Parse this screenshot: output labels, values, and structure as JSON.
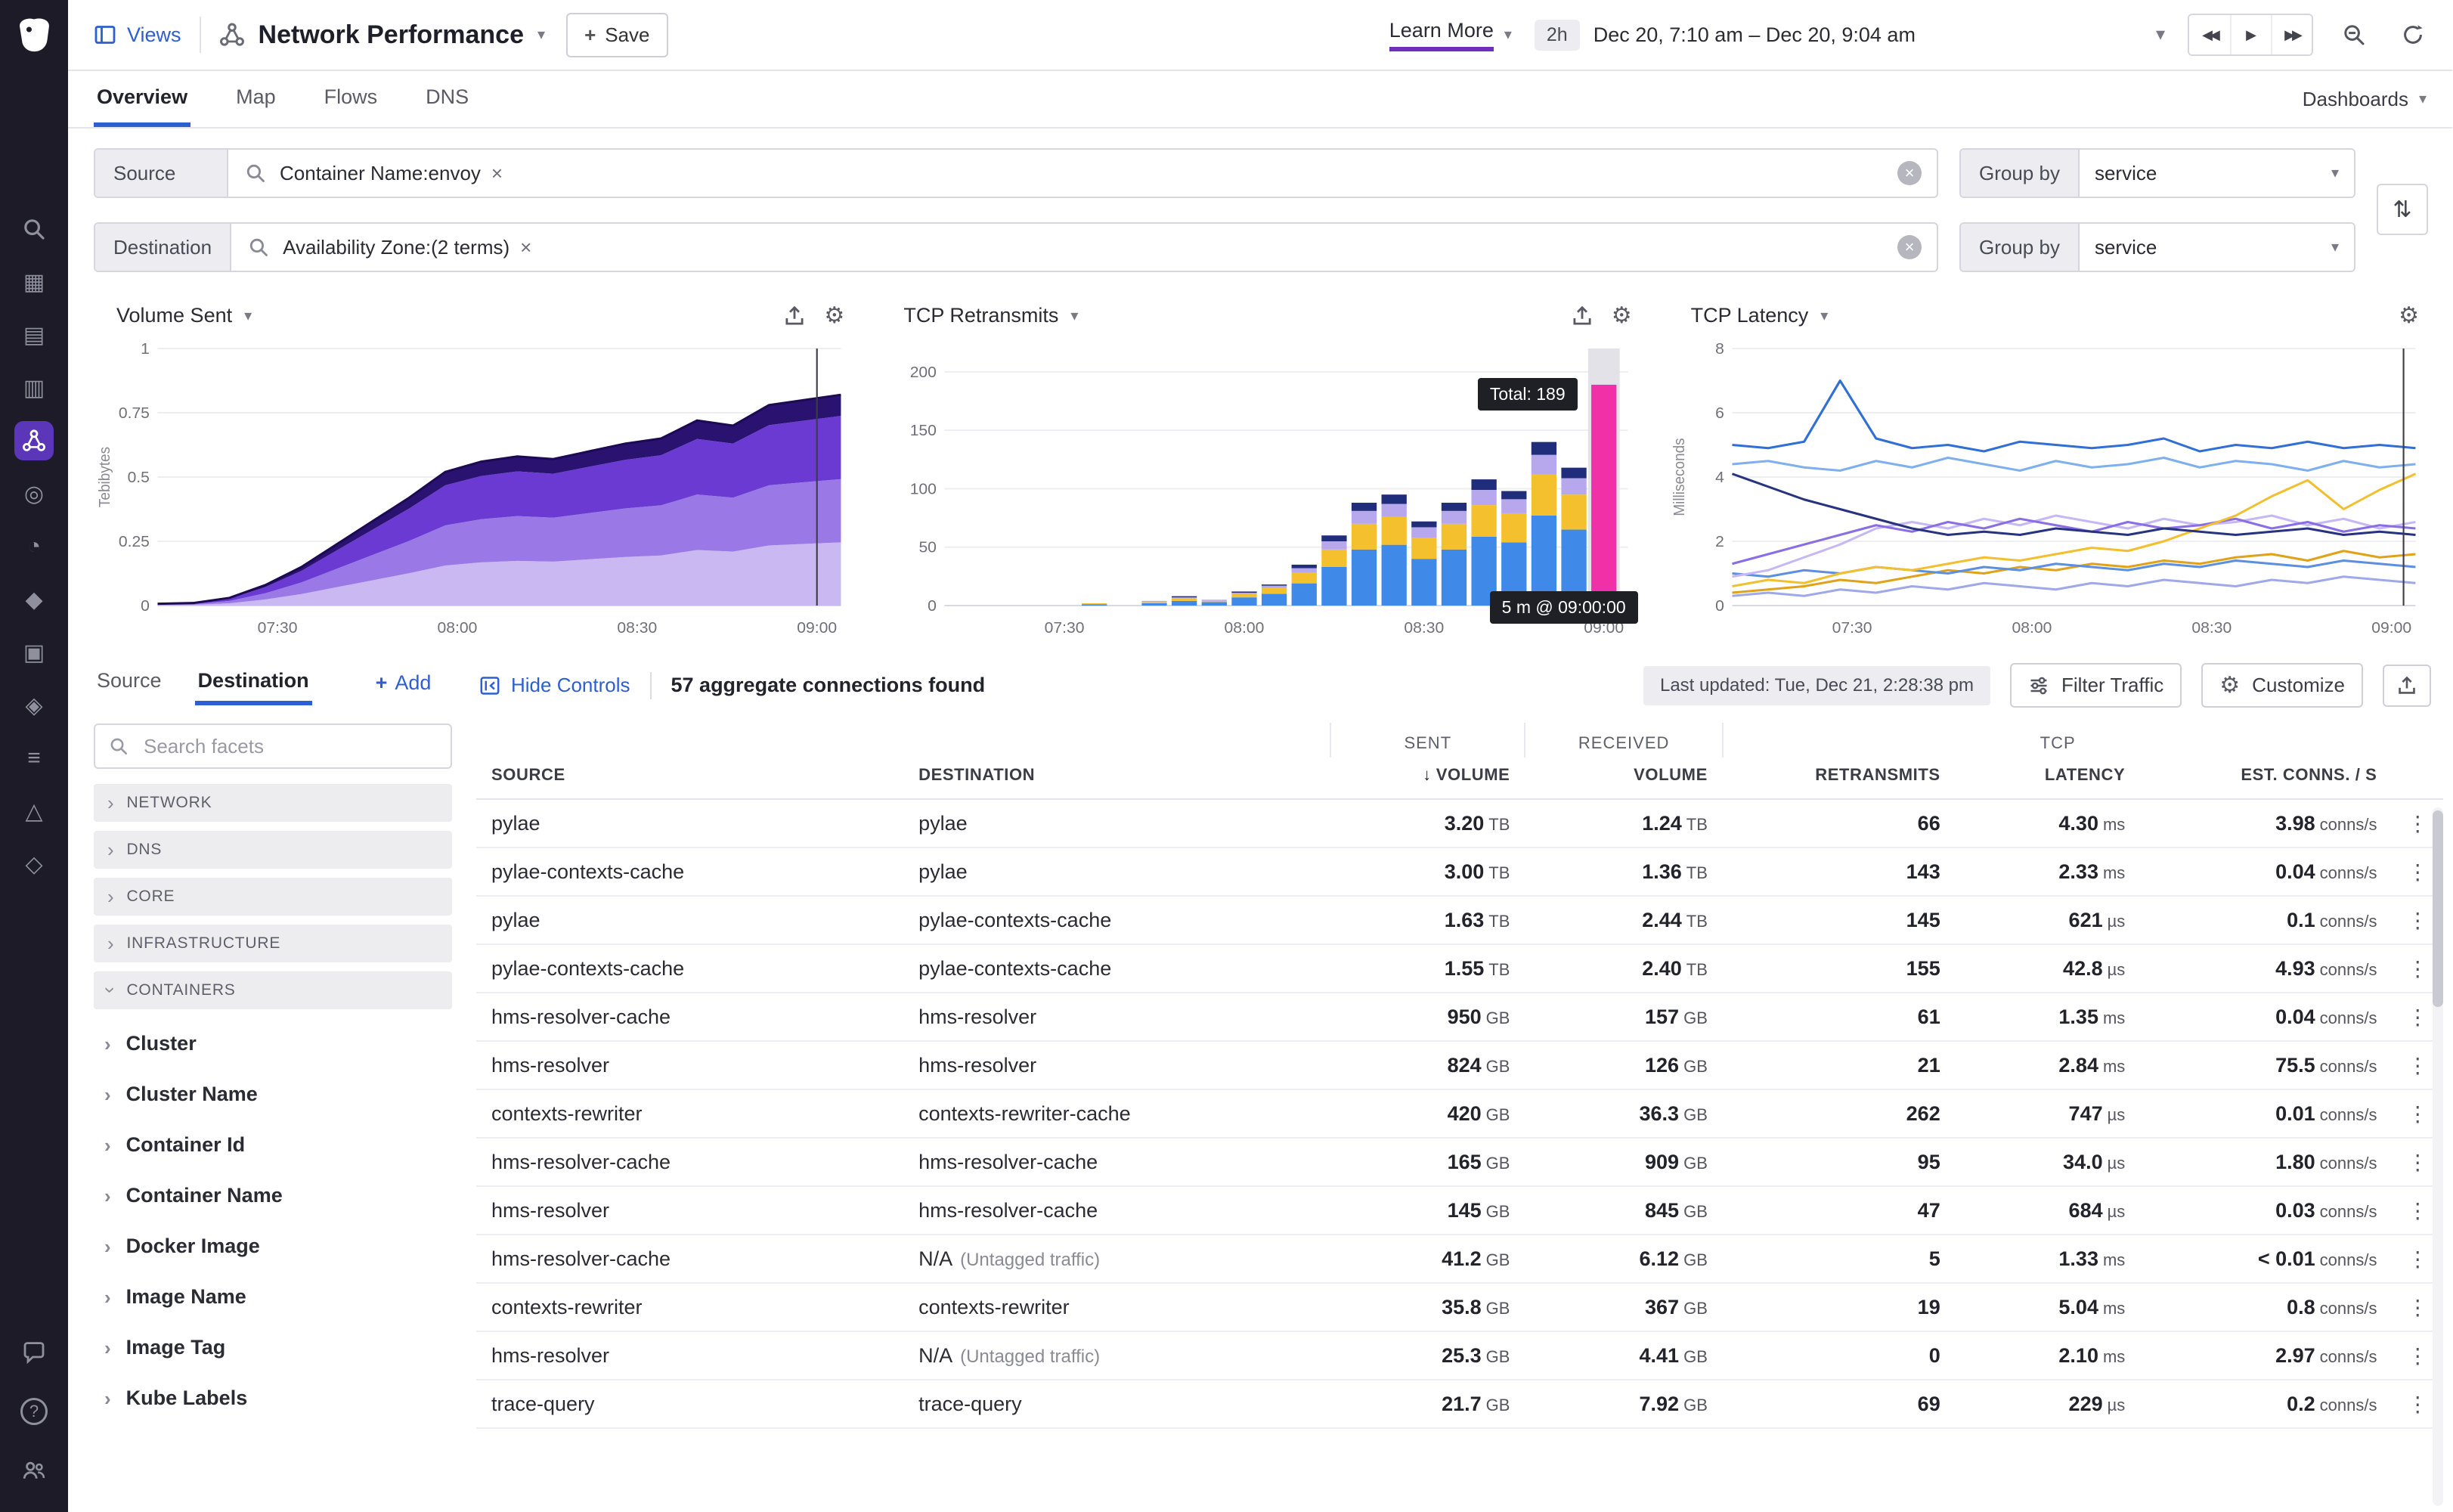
{
  "ui": {
    "close": "×",
    "chevron_down": "▾",
    "chevron_right": "›",
    "kebab": "⋮",
    "sort": "⇅",
    "plus": "+",
    "sort_arrow": "↓",
    "gear": "⚙",
    "rewind": "◀◀",
    "play": "▶",
    "forward": "▶▶",
    "help": "?"
  },
  "colors": {
    "accent_blue": "#2e5fd0",
    "accent_purple": "#632ca6",
    "magenta": "#f12fa6",
    "rail_bg": "#1c1b27"
  },
  "sidebar": {
    "items": [
      {
        "name": "search",
        "glyph": "search"
      },
      {
        "name": "hostmap",
        "glyph": "▦"
      },
      {
        "name": "infrastructure",
        "glyph": "▤"
      },
      {
        "name": "metrics",
        "glyph": "▥"
      },
      {
        "name": "network",
        "glyph": "network",
        "active": true
      },
      {
        "name": "apm",
        "glyph": "◎"
      },
      {
        "name": "synthetics",
        "glyph": "◔"
      },
      {
        "name": "rum",
        "glyph": "◆"
      },
      {
        "name": "logs",
        "glyph": "▣"
      },
      {
        "name": "security",
        "glyph": "◈"
      },
      {
        "name": "processes",
        "glyph": "≡"
      },
      {
        "name": "alerts",
        "glyph": "△"
      },
      {
        "name": "integrations",
        "glyph": "◇"
      }
    ],
    "bottom": [
      {
        "name": "chat",
        "glyph": "bubble"
      },
      {
        "name": "help",
        "glyph": "?"
      },
      {
        "name": "org",
        "glyph": "people"
      }
    ]
  },
  "topbar": {
    "views": "Views",
    "title": "Network Performance",
    "save": "Save",
    "learn_more": "Learn More",
    "preset": "2h",
    "range": "Dec 20, 7:10 am – Dec 20, 9:04 am"
  },
  "tabs": {
    "items": [
      "Overview",
      "Map",
      "Flows",
      "DNS"
    ],
    "dashboards": "Dashboards"
  },
  "filters": {
    "rows": [
      {
        "label": "Source",
        "tag": "Container Name:envoy",
        "group_by_label": "Group by",
        "group_by_value": "service"
      },
      {
        "label": "Destination",
        "tag": "Availability Zone:(2 terms)",
        "group_by_label": "Group by",
        "group_by_value": "service"
      }
    ]
  },
  "facets": {
    "tabs": [
      "Source",
      "Destination"
    ],
    "add": "Add",
    "search_placeholder": "Search facets",
    "groups": [
      {
        "label": "NETWORK",
        "expanded": false
      },
      {
        "label": "DNS",
        "expanded": false
      },
      {
        "label": "CORE",
        "expanded": false
      },
      {
        "label": "INFRASTRUCTURE",
        "expanded": false
      },
      {
        "label": "CONTAINERS",
        "expanded": true,
        "items": [
          "Cluster",
          "Cluster Name",
          "Container Id",
          "Container Name",
          "Docker Image",
          "Image Name",
          "Image Tag",
          "Kube Labels"
        ]
      }
    ]
  },
  "controls": {
    "hide": "Hide Controls",
    "found": "57 aggregate connections found",
    "last_updated": "Last updated: Tue, Dec 21, 2:28:38 pm",
    "filter": "Filter Traffic",
    "customize": "Customize"
  },
  "table": {
    "group": {
      "sent": "SENT",
      "received": "RECEIVED",
      "tcp": "TCP"
    },
    "cols": {
      "source": "SOURCE",
      "destination": "DESTINATION",
      "volume_sent": "VOLUME",
      "volume_received": "VOLUME",
      "retransmits": "RETRANSMITS",
      "latency": "LATENCY",
      "conns": "EST. CONNS. / S"
    },
    "rows": [
      {
        "source": "pylae",
        "destination": "pylae",
        "note": "",
        "sent_v": "3.20",
        "sent_u": "TB",
        "recv_v": "1.24",
        "recv_u": "TB",
        "retr": "66",
        "lat_v": "4.30",
        "lat_u": "ms",
        "conn_v": "3.98",
        "conn_u": "conns/s"
      },
      {
        "source": "pylae-contexts-cache",
        "destination": "pylae",
        "note": "",
        "sent_v": "3.00",
        "sent_u": "TB",
        "recv_v": "1.36",
        "recv_u": "TB",
        "retr": "143",
        "lat_v": "2.33",
        "lat_u": "ms",
        "conn_v": "0.04",
        "conn_u": "conns/s"
      },
      {
        "source": "pylae",
        "destination": "pylae-contexts-cache",
        "note": "",
        "sent_v": "1.63",
        "sent_u": "TB",
        "recv_v": "2.44",
        "recv_u": "TB",
        "retr": "145",
        "lat_v": "621",
        "lat_u": "µs",
        "conn_v": "0.1",
        "conn_u": "conns/s"
      },
      {
        "source": "pylae-contexts-cache",
        "destination": "pylae-contexts-cache",
        "note": "",
        "sent_v": "1.55",
        "sent_u": "TB",
        "recv_v": "2.40",
        "recv_u": "TB",
        "retr": "155",
        "lat_v": "42.8",
        "lat_u": "µs",
        "conn_v": "4.93",
        "conn_u": "conns/s"
      },
      {
        "source": "hms-resolver-cache",
        "destination": "hms-resolver",
        "note": "",
        "sent_v": "950",
        "sent_u": "GB",
        "recv_v": "157",
        "recv_u": "GB",
        "retr": "61",
        "lat_v": "1.35",
        "lat_u": "ms",
        "conn_v": "0.04",
        "conn_u": "conns/s"
      },
      {
        "source": "hms-resolver",
        "destination": "hms-resolver",
        "note": "",
        "sent_v": "824",
        "sent_u": "GB",
        "recv_v": "126",
        "recv_u": "GB",
        "retr": "21",
        "lat_v": "2.84",
        "lat_u": "ms",
        "conn_v": "75.5",
        "conn_u": "conns/s"
      },
      {
        "source": "contexts-rewriter",
        "destination": "contexts-rewriter-cache",
        "note": "",
        "sent_v": "420",
        "sent_u": "GB",
        "recv_v": "36.3",
        "recv_u": "GB",
        "retr": "262",
        "lat_v": "747",
        "lat_u": "µs",
        "conn_v": "0.01",
        "conn_u": "conns/s"
      },
      {
        "source": "hms-resolver-cache",
        "destination": "hms-resolver-cache",
        "note": "",
        "sent_v": "165",
        "sent_u": "GB",
        "recv_v": "909",
        "recv_u": "GB",
        "retr": "95",
        "lat_v": "34.0",
        "lat_u": "µs",
        "conn_v": "1.80",
        "conn_u": "conns/s"
      },
      {
        "source": "hms-resolver",
        "destination": "hms-resolver-cache",
        "note": "",
        "sent_v": "145",
        "sent_u": "GB",
        "recv_v": "845",
        "recv_u": "GB",
        "retr": "47",
        "lat_v": "684",
        "lat_u": "µs",
        "conn_v": "0.03",
        "conn_u": "conns/s"
      },
      {
        "source": "hms-resolver-cache",
        "destination": "N/A",
        "note": "(Untagged traffic)",
        "sent_v": "41.2",
        "sent_u": "GB",
        "recv_v": "6.12",
        "recv_u": "GB",
        "retr": "5",
        "lat_v": "1.33",
        "lat_u": "ms",
        "conn_v": "< 0.01",
        "conn_u": "conns/s"
      },
      {
        "source": "contexts-rewriter",
        "destination": "contexts-rewriter",
        "note": "",
        "sent_v": "35.8",
        "sent_u": "GB",
        "recv_v": "367",
        "recv_u": "GB",
        "retr": "19",
        "lat_v": "5.04",
        "lat_u": "ms",
        "conn_v": "0.8",
        "conn_u": "conns/s"
      },
      {
        "source": "hms-resolver",
        "destination": "N/A",
        "note": "(Untagged traffic)",
        "sent_v": "25.3",
        "sent_u": "GB",
        "recv_v": "4.41",
        "recv_u": "GB",
        "retr": "0",
        "lat_v": "2.10",
        "lat_u": "ms",
        "conn_v": "2.97",
        "conn_u": "conns/s"
      },
      {
        "source": "trace-query",
        "destination": "trace-query",
        "note": "",
        "sent_v": "21.7",
        "sent_u": "GB",
        "recv_v": "7.92",
        "recv_u": "GB",
        "retr": "69",
        "lat_v": "229",
        "lat_u": "µs",
        "conn_v": "0.2",
        "conn_u": "conns/s"
      }
    ]
  },
  "chart_data": [
    {
      "type": "area",
      "title": "Volume Sent",
      "ylabel": "Tebibytes",
      "ymax": 1,
      "yticks": [
        {
          "v": 0,
          "l": "0"
        },
        {
          "v": 0.25,
          "l": "0.25"
        },
        {
          "v": 0.5,
          "l": "0.5"
        },
        {
          "v": 0.75,
          "l": "0.75"
        },
        {
          "v": 1,
          "l": "1"
        }
      ],
      "xticks": [
        {
          "v": 20,
          "l": "07:30"
        },
        {
          "v": 50,
          "l": "08:00"
        },
        {
          "v": 80,
          "l": "08:30"
        },
        {
          "v": 110,
          "l": "09:00"
        }
      ],
      "xmin": 0,
      "xmax": 114,
      "x": [
        0,
        6,
        12,
        18,
        24,
        30,
        36,
        42,
        48,
        54,
        60,
        66,
        72,
        78,
        84,
        90,
        96,
        102,
        108,
        114
      ],
      "series": [
        {
          "color": "#c9b8f2",
          "values": [
            0.002,
            0.003,
            0.009,
            0.024,
            0.045,
            0.072,
            0.099,
            0.126,
            0.156,
            0.168,
            0.174,
            0.171,
            0.18,
            0.189,
            0.195,
            0.216,
            0.21,
            0.234,
            0.24,
            0.246
          ]
        },
        {
          "color": "#9a78e6",
          "values": [
            0.002,
            0.003,
            0.009,
            0.024,
            0.045,
            0.072,
            0.099,
            0.126,
            0.156,
            0.168,
            0.174,
            0.171,
            0.18,
            0.189,
            0.195,
            0.216,
            0.21,
            0.234,
            0.24,
            0.246
          ]
        },
        {
          "color": "#6a3ad2",
          "values": [
            0.002,
            0.003,
            0.009,
            0.024,
            0.045,
            0.072,
            0.099,
            0.126,
            0.156,
            0.168,
            0.174,
            0.171,
            0.18,
            0.189,
            0.195,
            0.216,
            0.21,
            0.234,
            0.24,
            0.246
          ]
        },
        {
          "color": "#2a1270",
          "values": [
            0.001,
            0.001,
            0.003,
            0.008,
            0.015,
            0.024,
            0.033,
            0.042,
            0.052,
            0.056,
            0.058,
            0.057,
            0.06,
            0.063,
            0.065,
            0.072,
            0.07,
            0.078,
            0.08,
            0.082
          ]
        }
      ],
      "edge": "#1c0b52",
      "cursor_x": 110
    },
    {
      "type": "bar",
      "title": "TCP Retransmits",
      "ylabel": "",
      "ymax": 220,
      "yticks": [
        {
          "v": 0,
          "l": "0"
        },
        {
          "v": 50,
          "l": "50"
        },
        {
          "v": 100,
          "l": "100"
        },
        {
          "v": 150,
          "l": "150"
        },
        {
          "v": 200,
          "l": "200"
        }
      ],
      "xticks": [
        {
          "v": 20,
          "l": "07:30"
        },
        {
          "v": 50,
          "l": "08:00"
        },
        {
          "v": 80,
          "l": "08:30"
        },
        {
          "v": 110,
          "l": "09:00"
        }
      ],
      "xmin": 0,
      "xmax": 114,
      "bar_x": [
        20,
        25,
        30,
        35,
        40,
        45,
        50,
        55,
        60,
        65,
        70,
        75,
        80,
        85,
        90,
        95,
        100,
        105
      ],
      "series": [
        {
          "name": "blue",
          "color": "#3f8ae8",
          "values": [
            0,
            1,
            0,
            2,
            4,
            3,
            7,
            10,
            19,
            33,
            48,
            52,
            40,
            48,
            59,
            54,
            77,
            65
          ]
        },
        {
          "name": "gold",
          "color": "#f5c02d",
          "values": [
            0,
            1,
            0,
            1,
            2,
            1,
            3,
            5,
            9,
            15,
            22,
            24,
            18,
            22,
            27,
            25,
            35,
            30
          ]
        },
        {
          "name": "lavender",
          "color": "#b7a7ec",
          "values": [
            0,
            0,
            0,
            1,
            1,
            1,
            1,
            2,
            4,
            7,
            11,
            11,
            9,
            11,
            13,
            12,
            17,
            14
          ]
        },
        {
          "name": "navy",
          "color": "#1f2d7a",
          "values": [
            0,
            0,
            0,
            0,
            1,
            0,
            1,
            1,
            3,
            5,
            7,
            8,
            5,
            7,
            9,
            7,
            11,
            9
          ]
        }
      ],
      "highlight": {
        "x": 110,
        "total": 189,
        "color": "#f12fa6"
      },
      "tooltip": {
        "total": "Total: 189",
        "time": "5 m @ 09:00:00"
      }
    },
    {
      "type": "line",
      "title": "TCP Latency",
      "ylabel": "Milliseconds",
      "ymax": 8,
      "yticks": [
        {
          "v": 0,
          "l": "0"
        },
        {
          "v": 2,
          "l": "2"
        },
        {
          "v": 4,
          "l": "4"
        },
        {
          "v": 6,
          "l": "6"
        },
        {
          "v": 8,
          "l": "8"
        }
      ],
      "xticks": [
        {
          "v": 20,
          "l": "07:30"
        },
        {
          "v": 50,
          "l": "08:00"
        },
        {
          "v": 80,
          "l": "08:30"
        },
        {
          "v": 110,
          "l": "09:00"
        }
      ],
      "xmin": 0,
      "xmax": 114,
      "x": [
        0,
        6,
        12,
        18,
        24,
        30,
        36,
        42,
        48,
        54,
        60,
        66,
        72,
        78,
        84,
        90,
        96,
        102,
        108,
        114
      ],
      "series": [
        {
          "color": "#9fa9ea",
          "values": [
            0.3,
            0.4,
            0.3,
            0.5,
            0.4,
            0.6,
            0.5,
            0.7,
            0.6,
            0.5,
            0.7,
            0.6,
            0.8,
            0.7,
            0.6,
            0.8,
            0.7,
            0.9,
            0.8,
            0.7
          ]
        },
        {
          "color": "#e0a21a",
          "values": [
            0.4,
            0.5,
            0.6,
            0.8,
            0.7,
            0.9,
            1.1,
            1.0,
            1.2,
            1.1,
            1.3,
            1.2,
            1.4,
            1.3,
            1.5,
            1.6,
            1.4,
            1.7,
            1.5,
            1.6
          ]
        },
        {
          "color": "#5d8fe0",
          "values": [
            1.0,
            0.9,
            1.1,
            1.0,
            1.2,
            1.1,
            1.0,
            1.2,
            1.1,
            1.3,
            1.2,
            1.1,
            1.3,
            1.2,
            1.4,
            1.3,
            1.2,
            1.4,
            1.3,
            1.2
          ]
        },
        {
          "color": "#c6b8f4",
          "values": [
            0.9,
            1.1,
            1.5,
            1.9,
            2.4,
            2.6,
            2.4,
            2.7,
            2.5,
            2.8,
            2.6,
            2.4,
            2.7,
            2.5,
            2.6,
            2.8,
            2.5,
            2.7,
            2.4,
            2.6
          ]
        },
        {
          "color": "#8a6fe4",
          "values": [
            1.3,
            1.6,
            1.9,
            2.2,
            2.5,
            2.3,
            2.6,
            2.4,
            2.7,
            2.5,
            2.3,
            2.6,
            2.4,
            2.5,
            2.7,
            2.4,
            2.6,
            2.3,
            2.5,
            2.4
          ]
        },
        {
          "color": "#f2c02e",
          "values": [
            0.6,
            0.8,
            0.7,
            1.0,
            1.2,
            1.1,
            1.3,
            1.5,
            1.4,
            1.6,
            1.8,
            1.7,
            2.0,
            2.4,
            2.8,
            3.4,
            3.9,
            3.0,
            3.6,
            4.1
          ]
        },
        {
          "color": "#27337f",
          "values": [
            4.1,
            3.7,
            3.3,
            3.0,
            2.7,
            2.4,
            2.2,
            2.3,
            2.2,
            2.4,
            2.3,
            2.2,
            2.4,
            2.3,
            2.2,
            2.3,
            2.4,
            2.2,
            2.3,
            2.2
          ]
        },
        {
          "color": "#7fb0ee",
          "values": [
            4.4,
            4.5,
            4.3,
            4.2,
            4.5,
            4.3,
            4.6,
            4.4,
            4.2,
            4.5,
            4.3,
            4.4,
            4.6,
            4.3,
            4.5,
            4.4,
            4.2,
            4.5,
            4.3,
            4.4
          ]
        },
        {
          "color": "#2f6fd6",
          "values": [
            5.0,
            4.9,
            5.1,
            7.0,
            5.2,
            4.9,
            5.0,
            4.8,
            5.1,
            5.0,
            4.9,
            5.0,
            5.2,
            4.8,
            5.0,
            4.9,
            5.1,
            4.9,
            5.0,
            4.9
          ]
        }
      ],
      "cursor_x": 112
    }
  ]
}
